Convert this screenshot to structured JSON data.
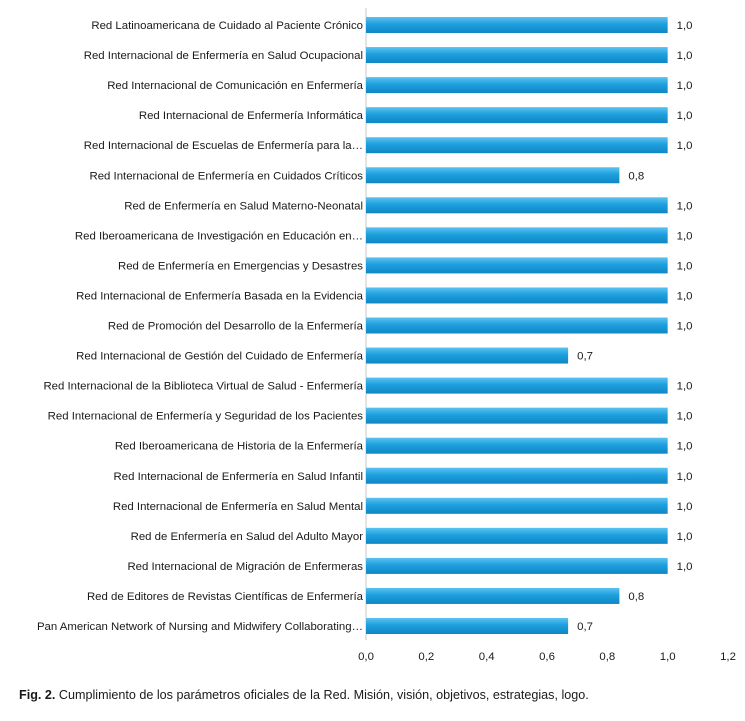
{
  "chart_data": {
    "type": "bar",
    "orientation": "horizontal",
    "title": "",
    "xlabel": "",
    "ylabel": "",
    "categories": [
      "Red Latinoamericana de Cuidado al Paciente Crónico",
      "Red Internacional de Enfermería en Salud Ocupacional",
      "Red Internacional de Comunicación en Enfermería",
      "Red Internacional de Enfermería Informática",
      "Red Internacional de Escuelas de Enfermería para la…",
      "Red Internacional de Enfermería en Cuidados Críticos",
      "Red de Enfermería en Salud Materno-Neonatal",
      "Red Iberoamericana de Investigación en Educación en…",
      "Red de Enfermería en Emergencias y Desastres",
      "Red Internacional de Enfermería Basada en la Evidencia",
      "Red de Promoción del Desarrollo de la Enfermería",
      "Red Internacional de Gestión del Cuidado de Enfermería",
      "Red Internacional de la Biblioteca Virtual de Salud - Enfermería",
      "Red Internacional de Enfermería y Seguridad de los Pacientes",
      "Red Iberoamericana de Historia de la Enfermería",
      "Red Internacional de Enfermería en Salud Infantil",
      "Red Internacional de Enfermería en Salud Mental",
      "Red de Enfermería en Salud del Adulto Mayor",
      "Red Internacional de Migración de Enfermeras",
      "Red de Editores de Revistas Científicas de Enfermería",
      "Pan American Network of Nursing and Midwifery Collaborating…"
    ],
    "values": [
      1.0,
      1.0,
      1.0,
      1.0,
      1.0,
      0.84,
      1.0,
      1.0,
      1.0,
      1.0,
      1.0,
      0.67,
      1.0,
      1.0,
      1.0,
      1.0,
      1.0,
      1.0,
      1.0,
      0.84,
      0.67
    ],
    "value_labels": [
      "1,0",
      "1,0",
      "1,0",
      "1,0",
      "1,0",
      "0,8",
      "1,0",
      "1,0",
      "1,0",
      "1,0",
      "1,0",
      "0,7",
      "1,0",
      "1,0",
      "1,0",
      "1,0",
      "1,0",
      "1,0",
      "1,0",
      "0,8",
      "0,7"
    ],
    "xlim": [
      0,
      1.2
    ],
    "xticks": [
      0,
      0.2,
      0.4,
      0.6,
      0.8,
      1.0,
      1.2
    ],
    "xtick_labels": [
      "0,0",
      "0,2",
      "0,4",
      "0,6",
      "0,8",
      "1,0",
      "1,2"
    ],
    "grid": false,
    "legend": "none",
    "bar_color": "#1e9fde",
    "bar_color_light": "#5cc3f0",
    "bar_color_dark": "#0f86c4",
    "axis_color": "#c8c8c8"
  },
  "caption": {
    "label": "Fig. 2.",
    "text": " Cumplimiento de los parámetros oficiales de la Red. Misión, visión, objetivos, estrategias, logo."
  }
}
